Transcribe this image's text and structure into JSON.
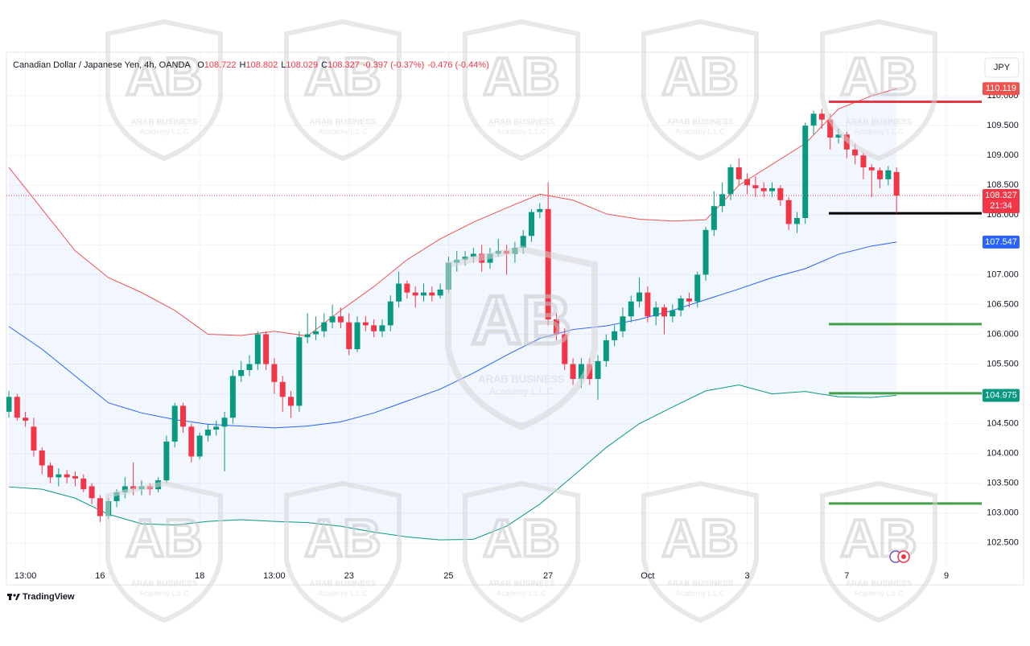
{
  "chart_data": {
    "type": "candlestick",
    "symbol": "Canadian Dollar / Japanese Yen, 4h, OANDA",
    "ohlc_letters": [
      "O",
      "H",
      "L",
      "C"
    ],
    "change": "-0.397 (-0.37%)",
    "change2": "-0.476 (-0.44%)",
    "currency": "JPY",
    "countdown": "21:34",
    "brand": "TradingView",
    "watermark": {
      "logo": "AB",
      "name": "ARAB BUSINESS",
      "sub": "Academy L.L.C"
    },
    "up_color": "#089981",
    "down_color": "#f23645",
    "grid": true,
    "ylim": [
      102.12,
      110.73
    ],
    "yticks": [
      {
        "value": 102.5,
        "label": "102.500"
      },
      {
        "value": 103,
        "label": "103.000"
      },
      {
        "value": 103.5,
        "label": "103.500"
      },
      {
        "value": 104,
        "label": "104.000"
      },
      {
        "value": 104.5,
        "label": "104.500"
      },
      {
        "value": 105,
        "label": "105.000"
      },
      {
        "value": 105.5,
        "label": "105.500"
      },
      {
        "value": 106,
        "label": "106.000"
      },
      {
        "value": 106.5,
        "label": "106.500"
      },
      {
        "value": 107,
        "label": "107.000"
      },
      {
        "value": 107.5,
        "label": "107.500"
      },
      {
        "value": 108,
        "label": "108.000"
      },
      {
        "value": 108.5,
        "label": "108.500"
      },
      {
        "value": 109,
        "label": "109.000"
      },
      {
        "value": 109.5,
        "label": "109.500"
      },
      {
        "value": 110,
        "label": "110.000"
      }
    ],
    "categories": [
      null,
      null,
      "13:00",
      null,
      null,
      null,
      null,
      null,
      null,
      null,
      null,
      "16",
      null,
      null,
      null,
      null,
      null,
      null,
      null,
      null,
      null,
      null,
      null,
      "18",
      null,
      null,
      null,
      null,
      null,
      null,
      null,
      null,
      "13:00",
      null,
      null,
      null,
      null,
      null,
      null,
      null,
      null,
      "23",
      null,
      null,
      null,
      null,
      null,
      null,
      null,
      null,
      null,
      null,
      null,
      "25",
      null,
      null,
      null,
      null,
      null,
      null,
      null,
      null,
      null,
      null,
      null,
      "27",
      null,
      null,
      null,
      null,
      null,
      null,
      null,
      null,
      null,
      null,
      null,
      "Oct",
      null,
      null,
      null,
      null,
      null,
      null,
      null,
      null,
      null,
      null,
      null,
      "3",
      null,
      null,
      null,
      null,
      null,
      null,
      null,
      null,
      null,
      null,
      null,
      "7",
      null,
      null,
      null,
      null,
      null,
      null,
      null,
      null,
      null,
      null,
      null,
      "9",
      null,
      null,
      null,
      null
    ],
    "open": [
      104.7,
      104.95,
      104.6,
      104.45,
      104.05,
      103.8,
      103.6,
      103.65,
      103.62,
      103.58,
      103.45,
      103.25,
      102.95,
      103.2,
      103.35,
      103.45,
      103.4,
      103.45,
      103.4,
      103.55,
      104.2,
      104.8,
      104.45,
      103.95,
      104.3,
      104.4,
      104.45,
      104.6,
      105.3,
      105.4,
      105.5,
      106.0,
      105.5,
      105.2,
      104.95,
      104.8,
      105.95,
      106.0,
      106.05,
      106.2,
      106.3,
      106.2,
      105.75,
      106.2,
      106.15,
      106.05,
      106.15,
      106.55,
      106.85,
      106.7,
      106.65,
      106.7,
      106.65,
      106.75,
      107.2,
      107.25,
      107.3,
      107.35,
      107.2,
      107.35,
      107.4,
      107.35,
      107.45,
      107.65,
      108.05,
      108.1,
      106.25,
      106.0,
      105.5,
      105.25,
      105.5,
      105.25,
      105.55,
      105.9,
      106.05,
      106.3,
      106.55,
      106.7,
      106.3,
      106.45,
      106.3,
      106.4,
      106.6,
      106.55,
      107.0,
      107.75,
      108.15,
      108.35,
      108.8,
      108.6,
      108.5,
      108.45,
      108.4,
      108.45,
      108.25,
      107.85,
      107.95,
      109.5,
      109.7,
      109.6,
      109.3,
      109.35,
      109.1,
      109.0,
      108.8,
      108.75,
      108.6,
      108.722,
      null,
      null,
      null,
      null,
      null,
      null,
      null,
      null,
      null,
      null
    ],
    "high": [
      105.05,
      105.0,
      104.7,
      104.6,
      104.1,
      103.85,
      103.75,
      103.72,
      103.7,
      103.65,
      103.5,
      103.3,
      103.25,
      103.4,
      103.6,
      103.85,
      103.55,
      103.5,
      103.6,
      104.3,
      104.85,
      104.85,
      104.5,
      104.35,
      104.5,
      104.55,
      104.7,
      105.4,
      105.55,
      105.65,
      106.05,
      106.05,
      105.6,
      105.3,
      105.05,
      106.05,
      106.35,
      106.3,
      106.35,
      106.5,
      106.45,
      106.35,
      106.3,
      106.3,
      106.25,
      106.25,
      106.65,
      107.05,
      106.9,
      106.8,
      106.85,
      106.8,
      106.85,
      107.3,
      107.4,
      107.4,
      107.45,
      107.5,
      107.45,
      107.6,
      107.5,
      107.55,
      107.75,
      108.1,
      108.2,
      108.55,
      106.35,
      106.1,
      105.6,
      105.6,
      105.6,
      105.65,
      106.0,
      106.15,
      106.45,
      106.65,
      106.95,
      106.8,
      106.55,
      106.5,
      106.5,
      106.65,
      106.7,
      107.05,
      107.8,
      108.4,
      108.55,
      108.85,
      108.95,
      108.7,
      108.65,
      108.55,
      108.55,
      108.5,
      108.3,
      108.05,
      109.55,
      109.75,
      109.78,
      109.7,
      109.45,
      109.4,
      109.2,
      109.05,
      108.85,
      108.8,
      108.82,
      108.802,
      null,
      null,
      null,
      null,
      null,
      null,
      null,
      null,
      null,
      null
    ],
    "low": [
      104.6,
      104.55,
      104.45,
      103.95,
      103.65,
      103.5,
      103.45,
      103.5,
      103.45,
      103.35,
      103.15,
      102.85,
      102.9,
      103.1,
      103.25,
      103.3,
      103.3,
      103.3,
      103.35,
      103.5,
      104.1,
      104.35,
      103.85,
      103.9,
      104.2,
      104.3,
      103.7,
      104.5,
      105.2,
      105.3,
      105.4,
      105.4,
      105.0,
      104.7,
      104.6,
      104.7,
      105.85,
      105.9,
      105.95,
      106.1,
      106.1,
      105.65,
      105.7,
      106.05,
      105.95,
      105.95,
      106.05,
      106.45,
      106.6,
      106.45,
      106.55,
      106.55,
      106.6,
      106.7,
      107.05,
      107.15,
      107.2,
      107.05,
      107.1,
      107.3,
      107.0,
      107.2,
      107.35,
      107.55,
      107.95,
      106.15,
      105.9,
      105.4,
      105.15,
      105.1,
      105.15,
      104.9,
      105.45,
      105.8,
      105.95,
      106.2,
      106.45,
      106.2,
      106.15,
      106.0,
      106.2,
      106.3,
      106.45,
      106.45,
      106.9,
      107.65,
      108.05,
      108.25,
      108.5,
      108.35,
      108.3,
      108.3,
      108.3,
      108.15,
      107.75,
      107.7,
      107.85,
      109.35,
      109.45,
      109.1,
      109.2,
      108.95,
      108.85,
      108.6,
      108.3,
      108.45,
      108.5,
      108.029,
      null,
      null,
      null,
      null,
      null,
      null,
      null,
      null,
      null,
      null
    ],
    "close": [
      104.95,
      104.6,
      104.55,
      104.05,
      103.8,
      103.6,
      103.65,
      103.6,
      103.58,
      103.4,
      103.25,
      102.95,
      103.2,
      103.35,
      103.45,
      103.4,
      103.45,
      103.4,
      103.55,
      104.2,
      104.8,
      104.45,
      103.95,
      104.3,
      104.4,
      104.45,
      104.6,
      105.3,
      105.4,
      105.5,
      106.0,
      105.5,
      105.2,
      104.95,
      104.8,
      105.95,
      106.0,
      106.05,
      106.2,
      106.3,
      106.2,
      105.75,
      106.2,
      106.15,
      106.05,
      106.15,
      106.55,
      106.85,
      106.7,
      106.65,
      106.7,
      106.65,
      106.75,
      107.2,
      107.25,
      107.3,
      107.35,
      107.2,
      107.35,
      107.4,
      107.35,
      107.45,
      107.65,
      108.05,
      108.1,
      106.25,
      106.0,
      105.5,
      105.25,
      105.5,
      105.25,
      105.55,
      105.9,
      106.05,
      106.3,
      106.55,
      106.7,
      106.3,
      106.45,
      106.3,
      106.4,
      106.6,
      106.55,
      107.0,
      107.75,
      108.15,
      108.35,
      108.8,
      108.6,
      108.5,
      108.45,
      108.4,
      108.45,
      108.25,
      107.85,
      107.95,
      109.5,
      109.7,
      109.6,
      109.3,
      109.35,
      109.1,
      109.0,
      108.8,
      108.75,
      108.6,
      108.75,
      108.327,
      null,
      null,
      null,
      null,
      null,
      null,
      null,
      null,
      null,
      null
    ],
    "series": [
      {
        "color": "#ef5350",
        "x": [
          0,
          4,
          8,
          12,
          16,
          20,
          24,
          28,
          32,
          36,
          40,
          44,
          48,
          52,
          56,
          60,
          64,
          68,
          72,
          76,
          80,
          84,
          88,
          92,
          96,
          100,
          104,
          107
        ],
        "values": [
          108.8,
          108.1,
          107.4,
          106.95,
          106.7,
          106.4,
          106.0,
          105.98,
          106.05,
          105.97,
          106.4,
          106.8,
          107.25,
          107.6,
          107.88,
          108.12,
          108.35,
          108.25,
          108.02,
          107.93,
          107.9,
          107.92,
          108.5,
          108.85,
          109.2,
          109.78,
          110.0,
          110.119
        ]
      },
      {
        "color": "#2962ff",
        "x": [
          0,
          4,
          8,
          12,
          16,
          20,
          24,
          28,
          32,
          36,
          40,
          44,
          48,
          52,
          56,
          60,
          64,
          68,
          72,
          76,
          80,
          84,
          88,
          92,
          96,
          100,
          104,
          107
        ],
        "values": [
          106.13,
          105.75,
          105.3,
          104.85,
          104.68,
          104.57,
          104.49,
          104.46,
          104.43,
          104.46,
          104.53,
          104.68,
          104.88,
          105.08,
          105.35,
          105.65,
          105.93,
          106.08,
          106.14,
          106.25,
          106.4,
          106.58,
          106.76,
          106.95,
          107.1,
          107.34,
          107.48,
          107.547
        ]
      },
      {
        "color": "#089981",
        "x": [
          0,
          4,
          8,
          12,
          16,
          20,
          24,
          28,
          32,
          36,
          40,
          44,
          48,
          52,
          56,
          60,
          64,
          68,
          72,
          76,
          80,
          84,
          88,
          92,
          96,
          100,
          104,
          107
        ],
        "values": [
          103.44,
          103.4,
          103.25,
          102.98,
          102.82,
          102.8,
          102.86,
          102.89,
          102.86,
          102.84,
          102.78,
          102.68,
          102.6,
          102.55,
          102.56,
          102.78,
          103.15,
          103.62,
          104.1,
          104.5,
          104.78,
          105.05,
          105.15,
          105.0,
          105.04,
          104.95,
          104.94,
          104.975
        ]
      }
    ],
    "levels": [
      {
        "value": 109.9,
        "color": "#e53946"
      },
      {
        "value": 108.03,
        "color": "#000000"
      },
      {
        "value": 106.17,
        "color": "#43a047"
      },
      {
        "value": 105.01,
        "color": "#43a047"
      },
      {
        "value": 103.16,
        "color": "#43a047"
      }
    ]
  }
}
